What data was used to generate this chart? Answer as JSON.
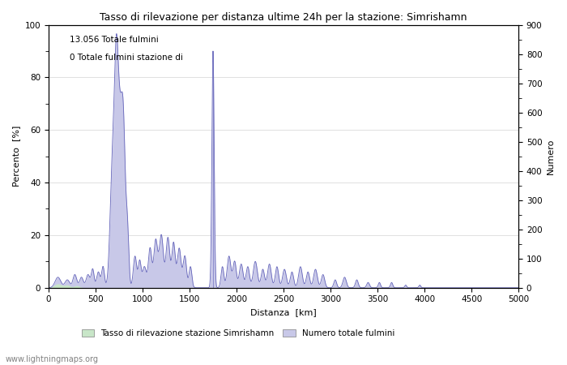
{
  "title": "Tasso di rilevazione per distanza ultime 24h per la stazione: Simrishamn",
  "xlabel": "Distanza  [km]",
  "ylabel_left": "Percento  [%]",
  "ylabel_right": "Numero",
  "annotation_line1": "13.056 Totale fulmini",
  "annotation_line2": "0 Totale fulmini stazione di",
  "legend_label1": "Tasso di rilevazione stazione Simrishamn",
  "legend_label2": "Numero totale fulmini",
  "legend_color1": "#c8e6c8",
  "legend_color2": "#c8c8e8",
  "line_color": "#6666bb",
  "fill_color": "#c8c8e8",
  "watermark": "www.lightningmaps.org",
  "xlim": [
    0,
    5000
  ],
  "ylim_left": [
    0,
    100
  ],
  "ylim_right": [
    0,
    900
  ],
  "xticks": [
    0,
    500,
    1000,
    1500,
    2000,
    2500,
    3000,
    3500,
    4000,
    4500,
    5000
  ],
  "yticks_left": [
    0,
    20,
    40,
    60,
    80,
    100
  ],
  "yticks_right": [
    0,
    100,
    200,
    300,
    400,
    500,
    600,
    700,
    800,
    900
  ]
}
